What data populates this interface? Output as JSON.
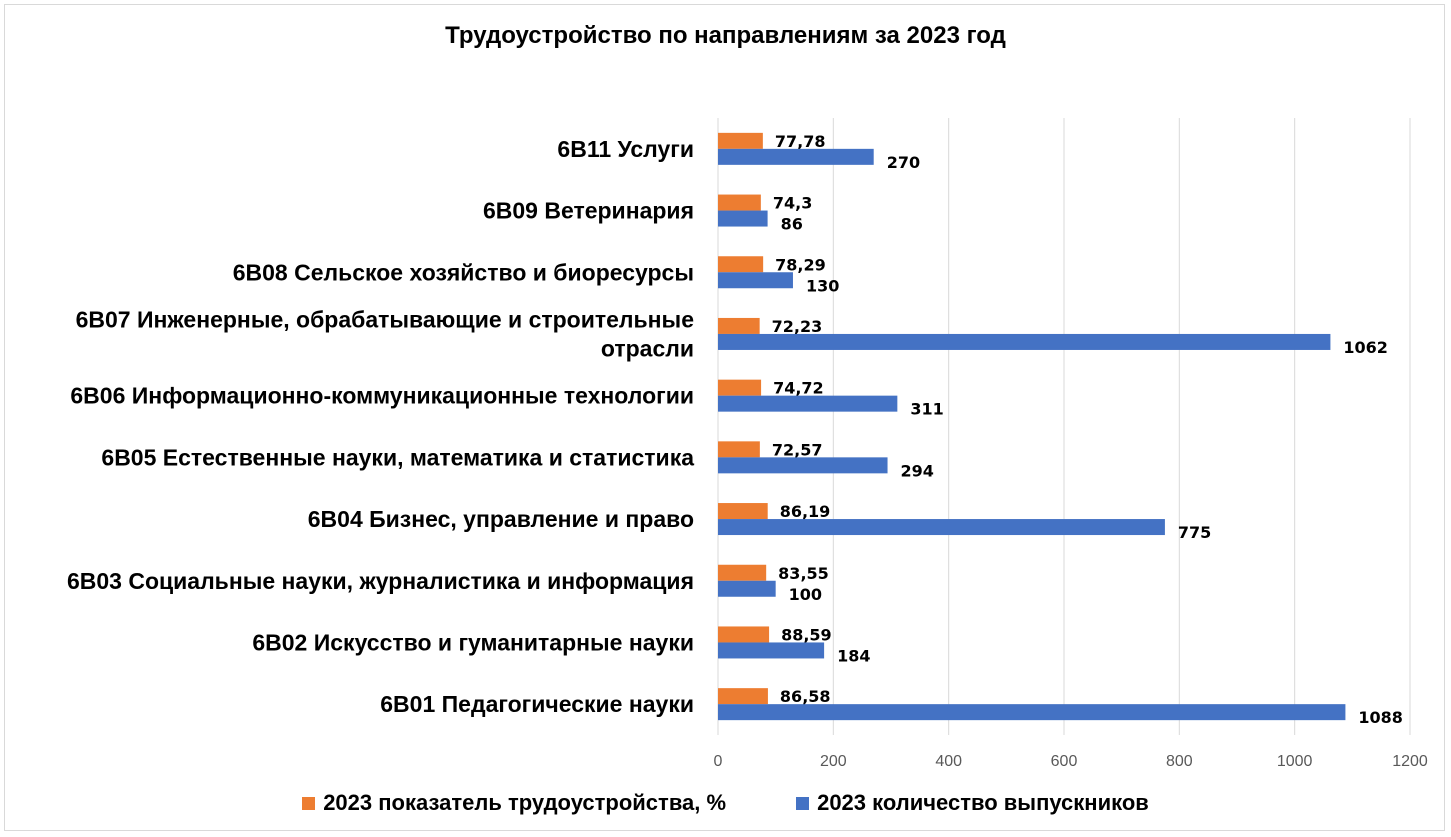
{
  "chart_data": {
    "type": "bar",
    "orientation": "horizontal",
    "title": "Трудоустройство по направлениям за 2023  год",
    "categories": [
      "6В11 Услуги",
      "6В09 Ветеринария",
      "6В08 Сельское хозяйство и биоресурсы",
      "6В07 Инженерные, обрабатывающие и строительные отрасли",
      "6В06 Информационно-коммуникационные технологии",
      "6В05 Естественные науки, математика и статистика",
      "6В04 Бизнес, управление и право",
      "6В03 Социальные науки, журналистика и информация",
      "6В02 Искусство и гуманитарные науки",
      "6В01 Педагогические науки"
    ],
    "category_lines": [
      [
        "6В11 Услуги"
      ],
      [
        "6В09 Ветеринария"
      ],
      [
        "6В08 Сельское хозяйство и биоресурсы"
      ],
      [
        "6В07 Инженерные, обрабатывающие и строительные",
        "отрасли"
      ],
      [
        "6В06 Информационно-коммуникационные технологии"
      ],
      [
        "6В05 Естественные науки, математика и статистика"
      ],
      [
        "6В04 Бизнес, управление и право"
      ],
      [
        "6В03 Социальные науки, журналистика и информация"
      ],
      [
        "6В02 Искусство и гуманитарные науки"
      ],
      [
        "6В01 Педагогические науки"
      ]
    ],
    "series": [
      {
        "name": "2023 показатель трудоустройства,  %",
        "color": "#ED7D31",
        "values": [
          77.78,
          74.3,
          78.29,
          72.23,
          74.72,
          72.57,
          86.19,
          83.55,
          88.59,
          86.58
        ],
        "labels": [
          "77,78",
          "74,3",
          "78,29",
          "72,23",
          "74,72",
          "72,57",
          "86,19",
          "83,55",
          "88,59",
          "86,58"
        ]
      },
      {
        "name": "2023 количество  выпускников",
        "color": "#4472C4",
        "values": [
          270,
          86,
          130,
          1062,
          311,
          294,
          775,
          100,
          184,
          1088
        ],
        "labels": [
          "270",
          "86",
          "130",
          "1062",
          "311",
          "294",
          "775",
          "100",
          "184",
          "1088"
        ]
      }
    ],
    "xlim": [
      0,
      1200
    ],
    "xticks": [
      0,
      200,
      400,
      600,
      800,
      1000,
      1200
    ],
    "xtick_labels": [
      "0",
      "200",
      "400",
      "600",
      "800",
      "1000",
      "1200"
    ],
    "grid": true,
    "legend_position": "bottom"
  }
}
